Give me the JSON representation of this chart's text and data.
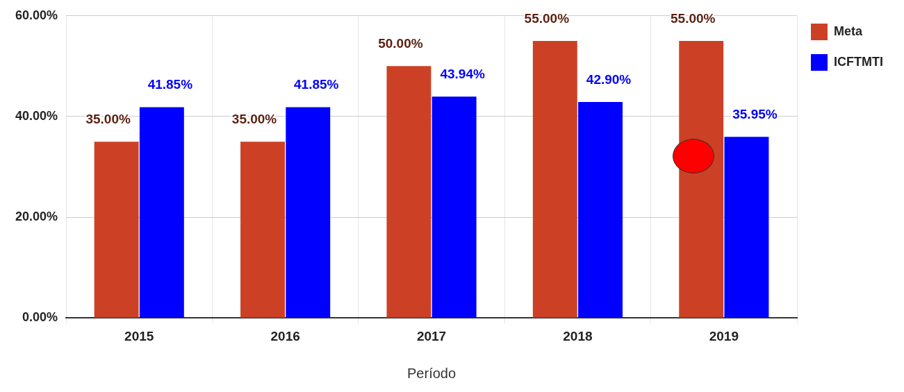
{
  "chart_data": {
    "type": "bar",
    "xlabel": "Período",
    "categories": [
      "2015",
      "2016",
      "2017",
      "2018",
      "2019"
    ],
    "series": [
      {
        "name": "Meta",
        "color": "#cc4125",
        "values": [
          35,
          35,
          50,
          55,
          55
        ],
        "value_labels": [
          "35.00%",
          "35.00%",
          "50.00%",
          "55.00%",
          "55.00%"
        ]
      },
      {
        "name": "ICFTMTI",
        "color": "#0000ff",
        "values": [
          41.85,
          41.85,
          43.94,
          42.9,
          35.95
        ],
        "value_labels": [
          "41.85%",
          "41.85%",
          "43.94%",
          "42.90%",
          "35.95%"
        ]
      }
    ],
    "ylim": [
      0,
      60
    ],
    "yticks": [
      {
        "value": 0,
        "label": "0.00%"
      },
      {
        "value": 20,
        "label": "20.00%"
      },
      {
        "value": 40,
        "label": "40.00%"
      },
      {
        "value": 60,
        "label": "60.00%"
      }
    ],
    "grid": true,
    "legend": "right"
  }
}
